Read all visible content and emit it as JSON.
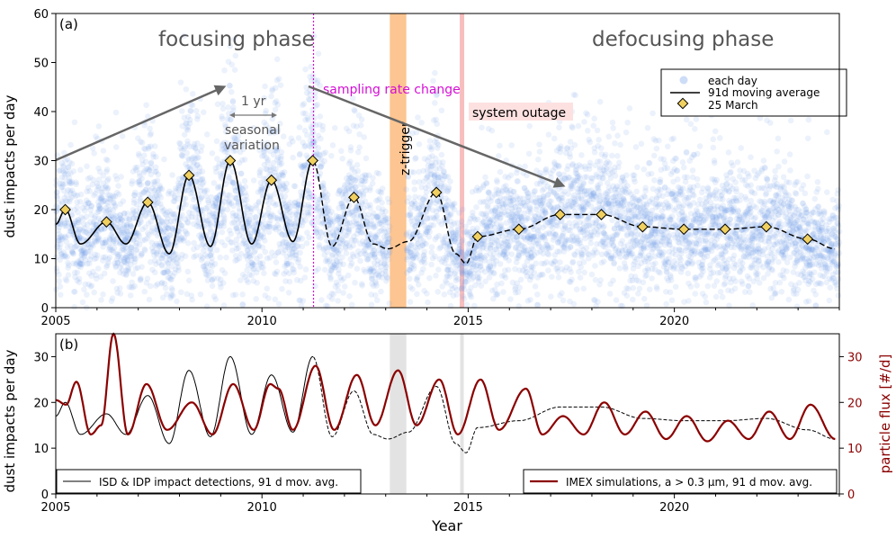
{
  "chart_data": [
    {
      "panel_label": "(a)",
      "type": "scatter",
      "xlabel": "",
      "ylabel": "dust impacts per day",
      "xlim": [
        2005,
        2024
      ],
      "ylim": [
        0,
        60
      ],
      "xticks": [
        2005,
        2010,
        2015,
        2020
      ],
      "yticks": [
        0,
        10,
        20,
        30,
        40,
        50,
        60
      ],
      "texts": {
        "focusing": "focusing phase",
        "defocusing": "defocusing phase",
        "sampling": "sampling rate change",
        "outage": "system outage",
        "ztrigger": "z-trigger",
        "oneyr": "1 yr",
        "seasonal1": "seasonal",
        "seasonal2": "variation"
      },
      "legend": {
        "each_day": "each day",
        "moving_avg": "91d moving average",
        "march": "25 March"
      },
      "events": {
        "sampling_rate_change": 2011.25,
        "z_trigger": [
          2013.1,
          2013.5
        ],
        "system_outage": 2014.85
      },
      "march25_markers": [
        {
          "x": 2005.23,
          "y": 20
        },
        {
          "x": 2006.23,
          "y": 17.5
        },
        {
          "x": 2007.23,
          "y": 21.5
        },
        {
          "x": 2008.23,
          "y": 27
        },
        {
          "x": 2009.23,
          "y": 30
        },
        {
          "x": 2010.23,
          "y": 26
        },
        {
          "x": 2011.23,
          "y": 30
        },
        {
          "x": 2012.23,
          "y": 22.5
        },
        {
          "x": 2014.23,
          "y": 23.5
        },
        {
          "x": 2015.23,
          "y": 14.5
        },
        {
          "x": 2016.23,
          "y": 16
        },
        {
          "x": 2017.23,
          "y": 19
        },
        {
          "x": 2018.23,
          "y": 19
        },
        {
          "x": 2019.23,
          "y": 16.5
        },
        {
          "x": 2020.23,
          "y": 16
        },
        {
          "x": 2021.23,
          "y": 16
        },
        {
          "x": 2022.23,
          "y": 16.5
        },
        {
          "x": 2023.23,
          "y": 14
        }
      ],
      "moving_average_key_points": [
        {
          "x": 2005.0,
          "y": 17
        },
        {
          "x": 2005.23,
          "y": 20
        },
        {
          "x": 2005.6,
          "y": 13
        },
        {
          "x": 2006.23,
          "y": 17.5
        },
        {
          "x": 2006.7,
          "y": 13
        },
        {
          "x": 2007.23,
          "y": 21.5
        },
        {
          "x": 2007.75,
          "y": 11
        },
        {
          "x": 2008.23,
          "y": 27
        },
        {
          "x": 2008.75,
          "y": 12.5
        },
        {
          "x": 2009.23,
          "y": 30
        },
        {
          "x": 2009.75,
          "y": 13
        },
        {
          "x": 2010.23,
          "y": 26
        },
        {
          "x": 2010.75,
          "y": 13.5
        },
        {
          "x": 2011.23,
          "y": 30
        },
        {
          "x": 2011.7,
          "y": 12.5
        },
        {
          "x": 2012.23,
          "y": 22.5
        },
        {
          "x": 2012.7,
          "y": 13
        },
        {
          "x": 2013.05,
          "y": 12
        },
        {
          "x": 2013.55,
          "y": 13.5
        },
        {
          "x": 2014.23,
          "y": 23.5
        },
        {
          "x": 2014.7,
          "y": 11
        },
        {
          "x": 2014.95,
          "y": 9
        },
        {
          "x": 2015.23,
          "y": 14.5
        },
        {
          "x": 2016.23,
          "y": 16
        },
        {
          "x": 2017.23,
          "y": 19
        },
        {
          "x": 2018.23,
          "y": 19
        },
        {
          "x": 2019.23,
          "y": 16.5
        },
        {
          "x": 2020.23,
          "y": 16
        },
        {
          "x": 2021.23,
          "y": 16
        },
        {
          "x": 2022.23,
          "y": 16.5
        },
        {
          "x": 2023.23,
          "y": 14
        },
        {
          "x": 2023.9,
          "y": 12
        }
      ]
    },
    {
      "panel_label": "(b)",
      "type": "line",
      "xlabel": "Year",
      "ylabel": "dust impacts per day",
      "y2label": "particle flux [#/d]",
      "xlim": [
        2005,
        2024
      ],
      "ylim": [
        0,
        35
      ],
      "y2lim": [
        0,
        35
      ],
      "xticks": [
        2005,
        2010,
        2015,
        2020
      ],
      "yticks": [
        0,
        10,
        20,
        30
      ],
      "y2ticks": [
        0,
        10,
        20,
        30
      ],
      "legend_left": "ISD & IDP impact detections, 91 d mov. avg.",
      "legend_right": "IMEX simulations, a > 0.3 µm, 91 d mov. avg.",
      "series": [
        {
          "name": "IMEX simulations, a > 0.3 µm, 91 d mov. avg.",
          "color": "#8b0000",
          "points": [
            {
              "x": 2005.0,
              "y": 20.5
            },
            {
              "x": 2005.25,
              "y": 19.5
            },
            {
              "x": 2005.5,
              "y": 24.5
            },
            {
              "x": 2005.85,
              "y": 13
            },
            {
              "x": 2006.1,
              "y": 15
            },
            {
              "x": 2006.4,
              "y": 35
            },
            {
              "x": 2006.75,
              "y": 13
            },
            {
              "x": 2007.2,
              "y": 24
            },
            {
              "x": 2007.7,
              "y": 14
            },
            {
              "x": 2008.3,
              "y": 20
            },
            {
              "x": 2008.8,
              "y": 13
            },
            {
              "x": 2009.3,
              "y": 24
            },
            {
              "x": 2009.8,
              "y": 14
            },
            {
              "x": 2010.2,
              "y": 24
            },
            {
              "x": 2010.4,
              "y": 23
            },
            {
              "x": 2010.75,
              "y": 14
            },
            {
              "x": 2011.3,
              "y": 28
            },
            {
              "x": 2011.75,
              "y": 14
            },
            {
              "x": 2012.3,
              "y": 26
            },
            {
              "x": 2012.75,
              "y": 15
            },
            {
              "x": 2013.3,
              "y": 27
            },
            {
              "x": 2013.75,
              "y": 15
            },
            {
              "x": 2014.3,
              "y": 25
            },
            {
              "x": 2014.75,
              "y": 13
            },
            {
              "x": 2015.3,
              "y": 25
            },
            {
              "x": 2015.75,
              "y": 14
            },
            {
              "x": 2016.4,
              "y": 23
            },
            {
              "x": 2016.8,
              "y": 13
            },
            {
              "x": 2017.3,
              "y": 17
            },
            {
              "x": 2017.8,
              "y": 13
            },
            {
              "x": 2018.3,
              "y": 20
            },
            {
              "x": 2018.8,
              "y": 13
            },
            {
              "x": 2019.3,
              "y": 18
            },
            {
              "x": 2019.8,
              "y": 12
            },
            {
              "x": 2020.3,
              "y": 17
            },
            {
              "x": 2020.8,
              "y": 11.5
            },
            {
              "x": 2021.3,
              "y": 16
            },
            {
              "x": 2021.8,
              "y": 12
            },
            {
              "x": 2022.3,
              "y": 18
            },
            {
              "x": 2022.8,
              "y": 12
            },
            {
              "x": 2023.3,
              "y": 19.5
            },
            {
              "x": 2023.9,
              "y": 12
            }
          ]
        },
        {
          "name": "ISD & IDP impact detections, 91 d mov. avg.",
          "color": "#000000",
          "points": [
            {
              "x": 2005.0,
              "y": 17
            },
            {
              "x": 2005.23,
              "y": 20
            },
            {
              "x": 2005.6,
              "y": 13
            },
            {
              "x": 2006.23,
              "y": 17.5
            },
            {
              "x": 2006.7,
              "y": 13
            },
            {
              "x": 2007.23,
              "y": 21.5
            },
            {
              "x": 2007.75,
              "y": 11
            },
            {
              "x": 2008.23,
              "y": 27
            },
            {
              "x": 2008.75,
              "y": 12.5
            },
            {
              "x": 2009.23,
              "y": 30
            },
            {
              "x": 2009.75,
              "y": 13
            },
            {
              "x": 2010.23,
              "y": 26
            },
            {
              "x": 2010.75,
              "y": 13.5
            },
            {
              "x": 2011.23,
              "y": 30
            },
            {
              "x": 2011.7,
              "y": 12.5
            },
            {
              "x": 2012.23,
              "y": 22.5
            },
            {
              "x": 2012.7,
              "y": 13
            },
            {
              "x": 2013.05,
              "y": 12
            },
            {
              "x": 2013.55,
              "y": 13.5
            },
            {
              "x": 2014.23,
              "y": 23.5
            },
            {
              "x": 2014.7,
              "y": 11
            },
            {
              "x": 2014.95,
              "y": 9
            },
            {
              "x": 2015.23,
              "y": 14.5
            },
            {
              "x": 2016.23,
              "y": 16
            },
            {
              "x": 2017.23,
              "y": 19
            },
            {
              "x": 2018.23,
              "y": 19
            },
            {
              "x": 2019.23,
              "y": 16.5
            },
            {
              "x": 2020.23,
              "y": 16
            },
            {
              "x": 2021.23,
              "y": 16
            },
            {
              "x": 2022.23,
              "y": 16.5
            },
            {
              "x": 2023.23,
              "y": 14
            },
            {
              "x": 2023.9,
              "y": 12
            }
          ]
        }
      ]
    }
  ]
}
